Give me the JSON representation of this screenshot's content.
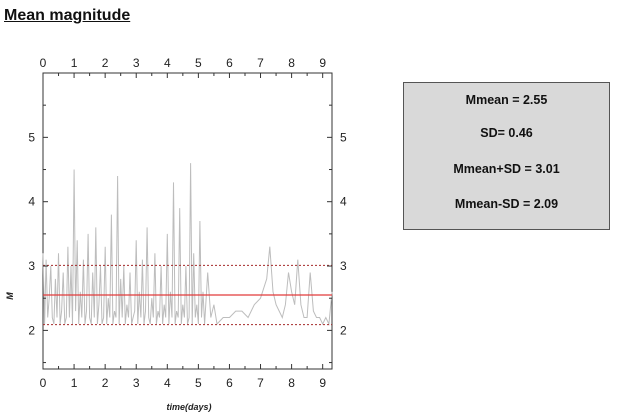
{
  "title": "Mean magnitude",
  "stats": [
    "Mmean = 2.55",
    "SD= 0.46",
    "Mmean+SD = 3.01",
    "Mmean-SD = 2.09"
  ],
  "colors": {
    "series": "#bdbdbd",
    "mean_line": "#e23b3b",
    "sd_lines": "#a52a2a",
    "box_fill": "#d9d9d9"
  },
  "chart_data": {
    "type": "line",
    "xlabel": "time(days)",
    "ylabel": "M",
    "xlim": [
      0,
      9.3
    ],
    "ylim": [
      1.4,
      6.0
    ],
    "xticks": [
      0,
      1,
      2,
      3,
      4,
      5,
      6,
      7,
      8,
      9
    ],
    "yticks": [
      2,
      3,
      4,
      5
    ],
    "grid": false,
    "series": [
      {
        "x": [
          0.0,
          0.05,
          0.1,
          0.15,
          0.2,
          0.25,
          0.3,
          0.35,
          0.4,
          0.45,
          0.5,
          0.55,
          0.6,
          0.65,
          0.7,
          0.75,
          0.8,
          0.85,
          0.9,
          0.95,
          1.0,
          1.05,
          1.1,
          1.15,
          1.2,
          1.25,
          1.3,
          1.35,
          1.4,
          1.45,
          1.5,
          1.55,
          1.6,
          1.65,
          1.7,
          1.75,
          1.8,
          1.85,
          1.9,
          1.95,
          2.0,
          2.05,
          2.1,
          2.15,
          2.2,
          2.25,
          2.3,
          2.35,
          2.4,
          2.45,
          2.5,
          2.55,
          2.6,
          2.65,
          2.7,
          2.75,
          2.8,
          2.85,
          2.9,
          2.95,
          3.0,
          3.05,
          3.1,
          3.15,
          3.2,
          3.25,
          3.3,
          3.35,
          3.4,
          3.45,
          3.5,
          3.55,
          3.6,
          3.65,
          3.7,
          3.75,
          3.8,
          3.85,
          3.9,
          3.95,
          4.0,
          4.05,
          4.1,
          4.15,
          4.2,
          4.25,
          4.3,
          4.35,
          4.4,
          4.45,
          4.5,
          4.55,
          4.6,
          4.65,
          4.7,
          4.75,
          4.8,
          4.85,
          4.9,
          4.95,
          5.0,
          5.05,
          5.1,
          5.15,
          5.2,
          5.3,
          5.4,
          5.5,
          5.6,
          5.8,
          6.0,
          6.2,
          6.4,
          6.6,
          6.8,
          7.0,
          7.2,
          7.3,
          7.4,
          7.5,
          7.6,
          7.7,
          7.8,
          7.9,
          8.0,
          8.1,
          8.2,
          8.3,
          8.4,
          8.5,
          8.6,
          8.7,
          8.8,
          8.9,
          9.0,
          9.1,
          9.2,
          9.3
        ],
        "y": [
          3.2,
          2.1,
          3.1,
          2.2,
          2.5,
          3.0,
          2.2,
          2.1,
          2.8,
          2.2,
          3.2,
          2.1,
          2.3,
          2.9,
          2.1,
          2.2,
          3.3,
          2.2,
          3.0,
          2.1,
          4.5,
          2.3,
          3.4,
          2.1,
          2.6,
          2.2,
          3.1,
          2.1,
          2.3,
          3.5,
          2.2,
          2.1,
          2.9,
          2.2,
          3.6,
          2.1,
          2.4,
          3.0,
          2.1,
          2.2,
          3.3,
          2.1,
          2.5,
          2.2,
          3.8,
          2.1,
          2.3,
          2.2,
          4.4,
          2.1,
          2.8,
          2.2,
          3.0,
          2.1,
          2.4,
          2.2,
          2.9,
          2.1,
          2.2,
          2.3,
          3.4,
          2.1,
          2.6,
          2.2,
          3.1,
          2.1,
          2.3,
          3.6,
          2.2,
          2.1,
          2.5,
          2.2,
          3.2,
          2.1,
          2.3,
          2.2,
          3.0,
          2.1,
          2.4,
          2.2,
          3.5,
          2.1,
          2.6,
          2.2,
          4.3,
          2.1,
          2.3,
          2.2,
          3.9,
          2.1,
          2.4,
          2.2,
          3.0,
          2.1,
          2.2,
          4.6,
          2.1,
          3.2,
          2.2,
          2.4,
          2.1,
          3.7,
          2.2,
          2.6,
          2.1,
          2.9,
          2.2,
          2.4,
          2.1,
          2.2,
          2.2,
          2.3,
          2.3,
          2.2,
          2.4,
          2.5,
          2.8,
          3.3,
          2.6,
          2.4,
          2.3,
          2.2,
          2.4,
          2.9,
          2.6,
          2.4,
          3.1,
          2.4,
          2.2,
          2.2,
          2.9,
          2.3,
          2.2,
          2.2,
          2.1,
          2.2,
          2.1,
          2.6
        ]
      }
    ],
    "mean": 2.55,
    "mean_plus_sd": 3.01,
    "mean_minus_sd": 2.09
  }
}
